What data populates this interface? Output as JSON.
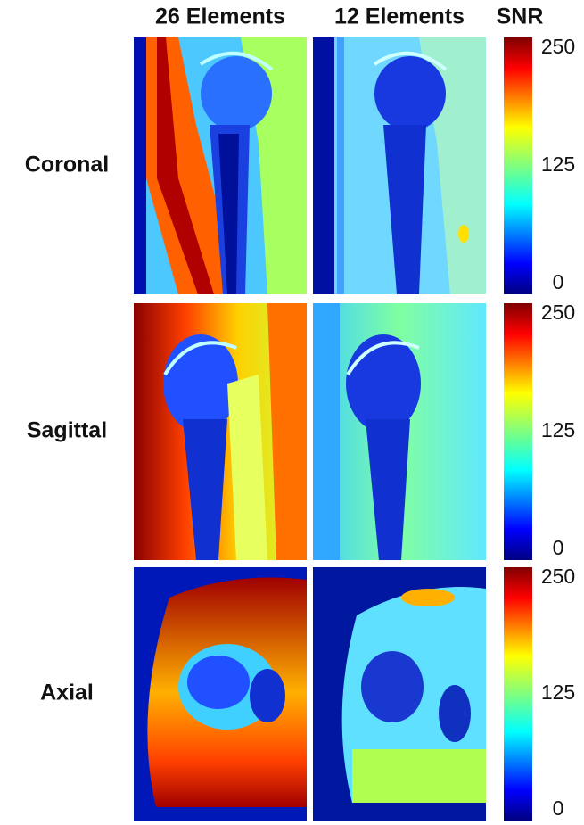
{
  "header": {
    "columns": [
      "26 Elements",
      "12 Elements"
    ],
    "colorbar_title": "SNR"
  },
  "rows": [
    {
      "label": "Coronal",
      "colorbar_ticks": [
        250,
        125,
        0
      ]
    },
    {
      "label": "Sagittal",
      "colorbar_ticks": [
        250,
        125,
        0
      ]
    },
    {
      "label": "Axial",
      "colorbar_ticks": [
        250,
        125,
        0
      ]
    }
  ]
}
